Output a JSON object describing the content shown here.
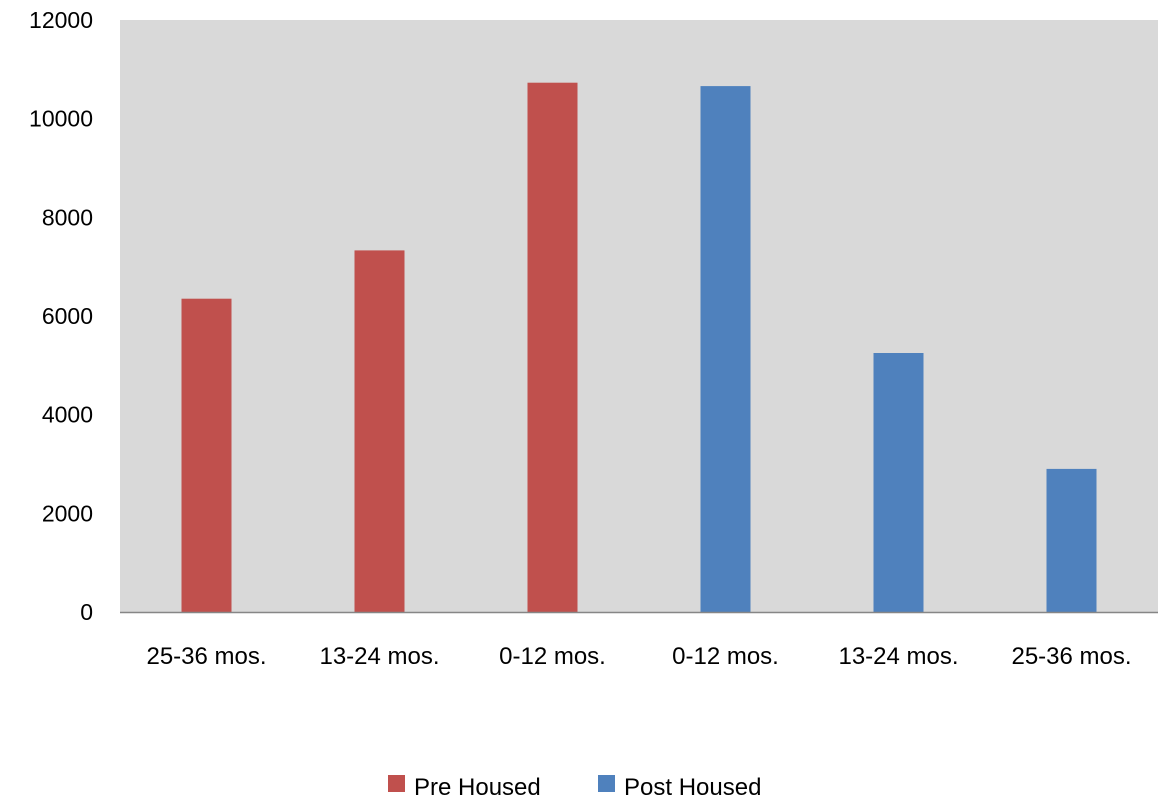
{
  "chart_data": {
    "type": "bar",
    "categories": [
      "25-36 mos.",
      "13-24 mos.",
      "0-12 mos.",
      "0-12 mos.",
      "13-24 mos.",
      "25-36 mos."
    ],
    "series": [
      {
        "name": "Pre Housed",
        "values": [
          6350,
          7330,
          10730,
          null,
          null,
          null
        ],
        "color": "#c0504d"
      },
      {
        "name": "Post Housed",
        "values": [
          null,
          null,
          null,
          10660,
          5250,
          2900
        ],
        "color": "#4f81bd"
      }
    ],
    "y_ticks": [
      "0",
      "2000",
      "4000",
      "6000",
      "8000",
      "10000",
      "12000"
    ],
    "ylim": [
      0,
      12000
    ],
    "grid": false,
    "plot_background": "#d9d9d9",
    "legend_position": "bottom",
    "title": "",
    "xlabel": "",
    "ylabel": ""
  }
}
